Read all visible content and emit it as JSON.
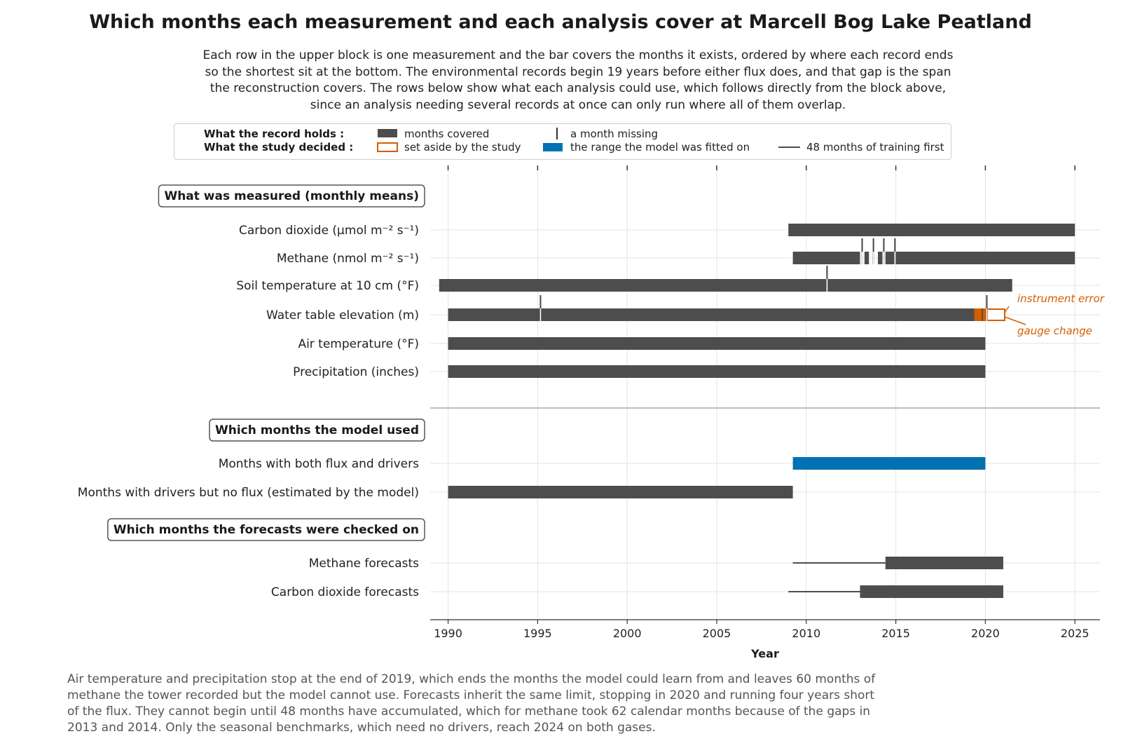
{
  "title": "Which months each measurement and each analysis cover at Marcell Bog Lake Peatland",
  "subtitle": "Each row in the upper block is one measurement and the bar covers the months it exists, ordered by where each record ends so the shortest sit at the bottom. The environmental records begin 19 years before either flux does, and that gap is the span the reconstruction covers. The rows below show what each analysis could use, which follows directly from the block above, since an analysis needing several records at once can only run where all of them overlap.",
  "footnote": "Air temperature and precipitation stop at the end of 2019, which ends the months the model could learn from and leaves 60 months of methane the tower recorded but the model cannot use. Forecasts inherit the same limit, stopping in 2020 and running four years short of the flux. They cannot begin until 48 months have accumulated, which for methane took 62 calendar months because of the gaps in 2013 and 2014. Only the seasonal benchmarks, which need no drivers, reach 2024 on both gases.",
  "legend": {
    "row1_title": "What the record holds :",
    "row2_title": "What the study decided :",
    "covered": "months covered",
    "missing": "a month missing",
    "set_aside": "set aside by the study",
    "fitted": "the range the model was fitted on",
    "training": "48 months of training first"
  },
  "colors": {
    "bar": "#4d4d4d",
    "fitted": "#0072b2",
    "set_aside": "#d55e00",
    "grid": "#e3e3e3",
    "footnote": "#555555"
  },
  "chart_data": {
    "type": "timeline",
    "xlabel": "Year",
    "xlim": [
      1989,
      2026.4
    ],
    "xticks": [
      1990,
      1995,
      2000,
      2005,
      2010,
      2015,
      2020,
      2025
    ],
    "groups": [
      {
        "heading": "What was measured (monthly means)",
        "rows": [
          {
            "label": "Carbon dioxide (μmol m⁻² s⁻¹)",
            "segments": [
              [
                2009.0,
                2025.0
              ]
            ],
            "missing": []
          },
          {
            "label": "Methane (nmol m⁻² s⁻¹)",
            "segments": [
              [
                2009.25,
                2013.0
              ],
              [
                2013.25,
                2013.5
              ],
              [
                2014.0,
                2014.25
              ],
              [
                2014.42,
                2014.92
              ],
              [
                2015.0,
                2025.0
              ]
            ],
            "missing": [
              2013.12,
              2013.75,
              2014.33,
              2014.95
            ]
          },
          {
            "label": "Soil temperature at 10 cm (°F)",
            "segments": [
              [
                1989.5,
                2011.12
              ],
              [
                2011.2,
                2021.5
              ]
            ],
            "missing": [
              2011.16
            ]
          },
          {
            "label": "Water table elevation (m)",
            "segments": [
              [
                1990.0,
                1995.12
              ],
              [
                1995.2,
                2020.0
              ]
            ],
            "missing": [
              1995.16,
              2020.08
            ],
            "set_aside": [
              [
                2019.42,
                2019.55
              ],
              [
                2019.62,
                2019.75
              ],
              [
                2019.9,
                2020.1
              ],
              [
                2020.1,
                2021.08
              ]
            ],
            "annotations": [
              "instrument error",
              "gauge change"
            ]
          },
          {
            "label": "Air temperature (°F)",
            "segments": [
              [
                1990.0,
                2020.0
              ]
            ],
            "missing": []
          },
          {
            "label": "Precipitation (inches)",
            "segments": [
              [
                1990.0,
                2020.0
              ]
            ],
            "missing": []
          }
        ]
      },
      {
        "heading": "Which months the model used",
        "rows": [
          {
            "label": "Months with both flux and drivers",
            "segments": [
              [
                2009.25,
                2020.0
              ]
            ],
            "kind": "fitted"
          },
          {
            "label": "Months with drivers but no flux (estimated by the model)",
            "segments": [
              [
                1990.0,
                2009.25
              ]
            ]
          }
        ]
      },
      {
        "heading": "Which months the forecasts were checked on",
        "rows": [
          {
            "label": "Methane forecasts",
            "training": [
              2009.25,
              2014.42
            ],
            "segments": [
              [
                2014.42,
                2021.0
              ]
            ]
          },
          {
            "label": "Carbon dioxide forecasts",
            "training": [
              2009.0,
              2013.0
            ],
            "segments": [
              [
                2013.0,
                2021.0
              ]
            ]
          }
        ]
      }
    ]
  }
}
